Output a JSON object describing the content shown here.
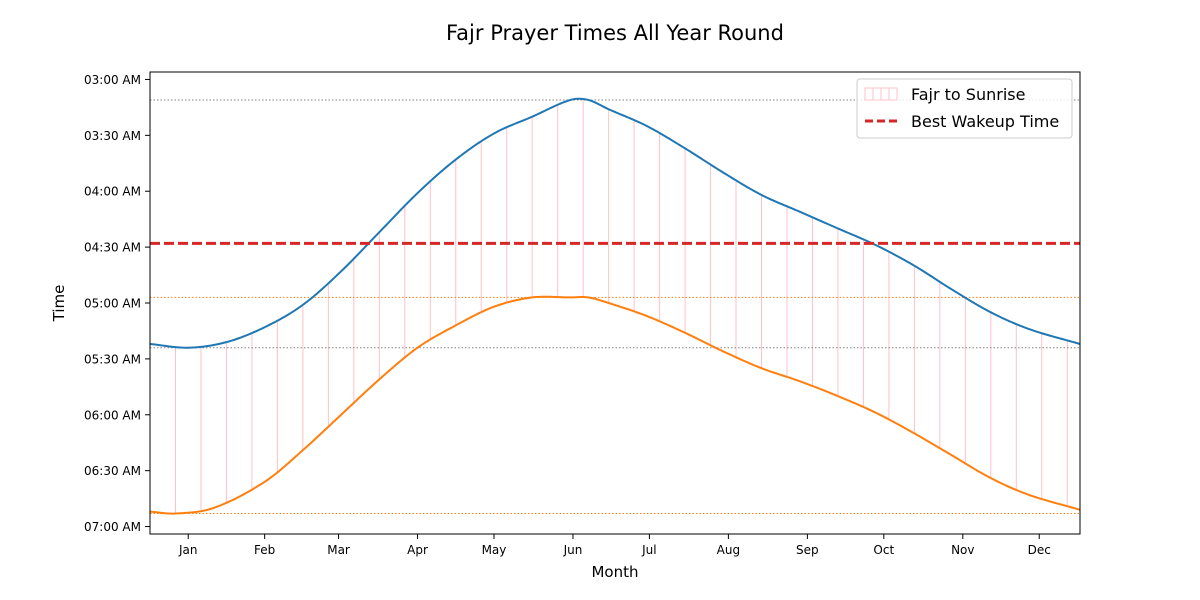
{
  "chart_data": {
    "type": "line",
    "title": "Fajr Prayer Times All Year Round",
    "xlabel": "Month",
    "ylabel": "Time",
    "x_tick_labels": [
      "Jan",
      "Feb",
      "Mar",
      "Apr",
      "May",
      "Jun",
      "Jul",
      "Aug",
      "Sep",
      "Oct",
      "Nov",
      "Dec"
    ],
    "x_tick_days": [
      15,
      45,
      74,
      105,
      135,
      166,
      196,
      227,
      258,
      288,
      319,
      349
    ],
    "y_tick_labels": [
      "03:00 AM",
      "03:30 AM",
      "04:00 AM",
      "04:30 AM",
      "05:00 AM",
      "05:30 AM",
      "06:00 AM",
      "06:30 AM",
      "07:00 AM"
    ],
    "y_tick_minutes": [
      180,
      210,
      240,
      270,
      300,
      330,
      360,
      390,
      420
    ],
    "xlim_days": [
      0,
      365
    ],
    "ylim_minutes": [
      176,
      424
    ],
    "y_inverted": true,
    "y_unit": "minutes after midnight",
    "legend_position": "upper right",
    "colors": {
      "fajr": "#1f77b4",
      "sunrise": "#ff7f0e",
      "fill": "#ffc0cb",
      "best_wakeup": "#d62728",
      "ref_fajr": "#808080",
      "ref_sunrise": "#ff7f0e"
    },
    "series": [
      {
        "key": "fajr",
        "day": [
          0,
          15,
          30,
          45,
          60,
          75,
          90,
          105,
          120,
          135,
          150,
          165,
          172,
          180,
          195,
          210,
          225,
          240,
          255,
          270,
          285,
          300,
          315,
          330,
          345,
          365
        ],
        "minutes": [
          322,
          324,
          321,
          313,
          301,
          283,
          262,
          241,
          223,
          209,
          200,
          191,
          191,
          196,
          205,
          217,
          230,
          242,
          251,
          260,
          269,
          280,
          293,
          305,
          314,
          322
        ]
      },
      {
        "key": "sunrise",
        "day": [
          0,
          10,
          25,
          45,
          60,
          75,
          90,
          105,
          120,
          135,
          150,
          165,
          172,
          180,
          195,
          210,
          225,
          240,
          255,
          270,
          285,
          300,
          315,
          330,
          345,
          365
        ],
        "minutes": [
          412,
          413,
          410,
          396,
          379,
          360,
          341,
          324,
          312,
          302,
          297,
          297,
          297,
          300,
          307,
          316,
          326,
          335,
          342,
          350,
          359,
          370,
          382,
          394,
          403,
          411
        ]
      }
    ],
    "legend": [
      {
        "key": "fill",
        "label": "Fajr to Sunrise"
      },
      {
        "key": "best_wakeup",
        "label": "Best Wakeup Time"
      }
    ],
    "best_wakeup_minutes": 268,
    "reference_lines": [
      {
        "key": "ref_fajr",
        "minutes": 191
      },
      {
        "key": "ref_fajr",
        "minutes": 324
      },
      {
        "key": "ref_sunrise",
        "minutes": 297
      },
      {
        "key": "ref_sunrise",
        "minutes": 413
      }
    ],
    "fill_line_interval_days": 10
  }
}
